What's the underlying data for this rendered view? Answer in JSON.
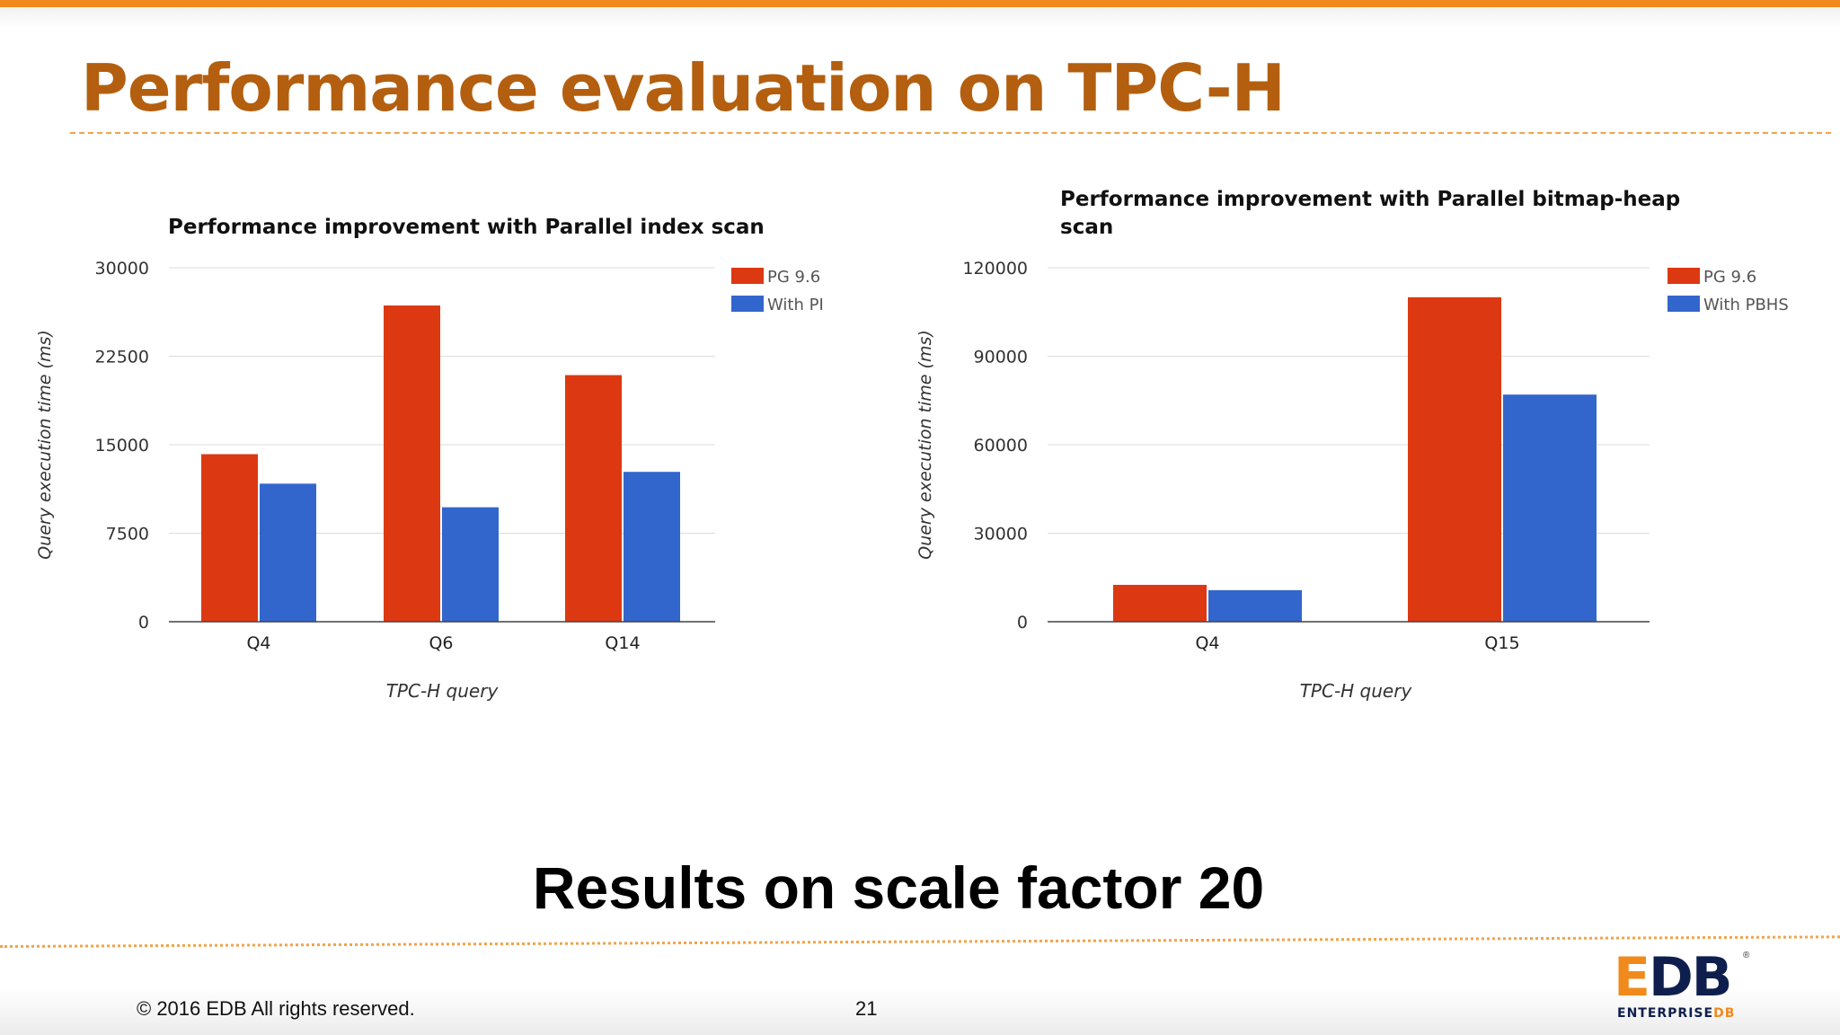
{
  "slide": {
    "title": "Performance evaluation on TPC-H",
    "subtitle": "Results on scale factor 20",
    "copyright": "© 2016 EDB All rights reserved.",
    "page_number": "21",
    "logo": {
      "mark_left": "E",
      "mark_right": "DB",
      "sub_main": "ENTERPRISE",
      "sub_accent": "DB",
      "reg": "®"
    }
  },
  "colors": {
    "accent": "#f08a1c",
    "title": "#b35f0f",
    "series_a": "#dc3912",
    "series_b": "#3366cc"
  },
  "chart_data": [
    {
      "type": "bar",
      "title_lines": [
        "Performance improvement with Parallel index scan"
      ],
      "xlabel": "TPC-H query",
      "ylabel": "Query execution time (ms)",
      "ylim": [
        0,
        30000
      ],
      "yticks": [
        0,
        7500,
        15000,
        22500,
        30000
      ],
      "ytick_labels": [
        "0",
        "7500",
        "15000",
        "22500",
        "30000"
      ],
      "categories": [
        "Q4",
        "Q6",
        "Q14"
      ],
      "series": [
        {
          "name": "PG 9.6",
          "color": "#dc3912",
          "values": [
            14200,
            26800,
            20900
          ]
        },
        {
          "name": "With PI",
          "color": "#3366cc",
          "values": [
            11700,
            9700,
            12700
          ]
        }
      ],
      "grid": true,
      "legend": "right"
    },
    {
      "type": "bar",
      "title_lines": [
        "Performance improvement with Parallel bitmap-heap",
        "scan"
      ],
      "xlabel": "TPC-H query",
      "ylabel": "Query execution time (ms)",
      "ylim": [
        0,
        120000
      ],
      "yticks": [
        0,
        30000,
        60000,
        90000,
        120000
      ],
      "ytick_labels": [
        "0",
        "30000",
        "60000",
        "90000",
        "120000"
      ],
      "categories": [
        "Q4",
        "Q15"
      ],
      "series": [
        {
          "name": "PG 9.6",
          "color": "#dc3912",
          "values": [
            12500,
            110000
          ]
        },
        {
          "name": "With PBHS",
          "color": "#3366cc",
          "values": [
            10700,
            77000
          ]
        }
      ],
      "grid": true,
      "legend": "right"
    }
  ]
}
